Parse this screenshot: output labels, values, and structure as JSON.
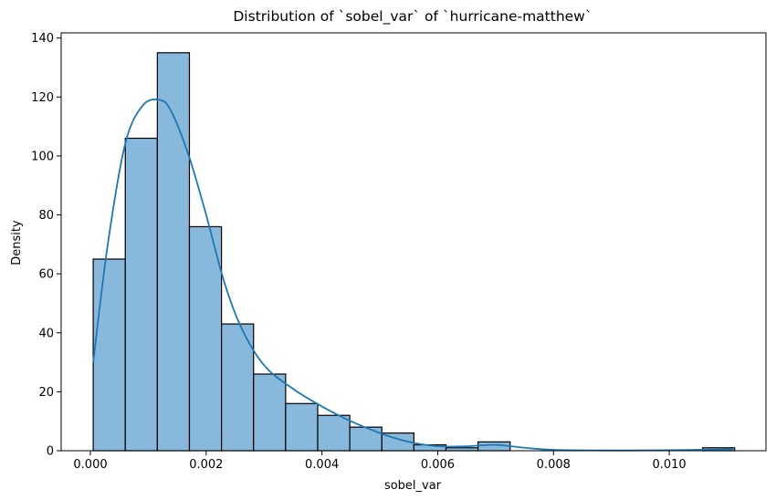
{
  "chart_data": {
    "type": "histogram",
    "title": "Distribution of `sobel_var` of `hurricane-matthew`",
    "xlabel": "sobel_var",
    "ylabel": "Density",
    "xlim": [
      -0.000505,
      0.01167
    ],
    "ylim": [
      0,
      141.75
    ],
    "x_ticks": [
      0.0,
      0.002,
      0.004,
      0.006,
      0.008,
      0.01
    ],
    "x_tick_labels": [
      "0.000",
      "0.002",
      "0.004",
      "0.006",
      "0.008",
      "0.010"
    ],
    "y_ticks": [
      0,
      20,
      40,
      60,
      80,
      100,
      120,
      140
    ],
    "y_tick_labels": [
      "0",
      "20",
      "40",
      "60",
      "80",
      "100",
      "120",
      "140"
    ],
    "grid": false,
    "bin_start": 4.85e-05,
    "bin_width": 0.000554,
    "values": [
      65,
      106,
      135,
      76,
      43,
      26,
      16,
      12,
      8,
      6,
      2,
      1,
      3,
      0,
      0,
      0,
      0,
      0,
      0,
      1
    ],
    "kde_x": [
      4.85e-05,
      0.0003,
      0.0006,
      0.0009,
      0.0012,
      0.0014,
      0.0017,
      0.002,
      0.0023,
      0.0026,
      0.003,
      0.0035,
      0.004,
      0.0045,
      0.005,
      0.0055,
      0.006,
      0.0065,
      0.007,
      0.0075,
      0.008,
      0.009,
      0.01,
      0.0111
    ],
    "kde_y": [
      30,
      70,
      104,
      117,
      119,
      115,
      100,
      80,
      58,
      42,
      29,
      21,
      15,
      10,
      6,
      3,
      1.5,
      1.5,
      2,
      1,
      0.3,
      0.1,
      0.2,
      0.5
    ],
    "colors": {
      "bar_fill": "#89b8dd",
      "bar_edge": "#000000",
      "kde_line": "#1f77b4",
      "axes": "#000000",
      "background": "#ffffff"
    }
  }
}
